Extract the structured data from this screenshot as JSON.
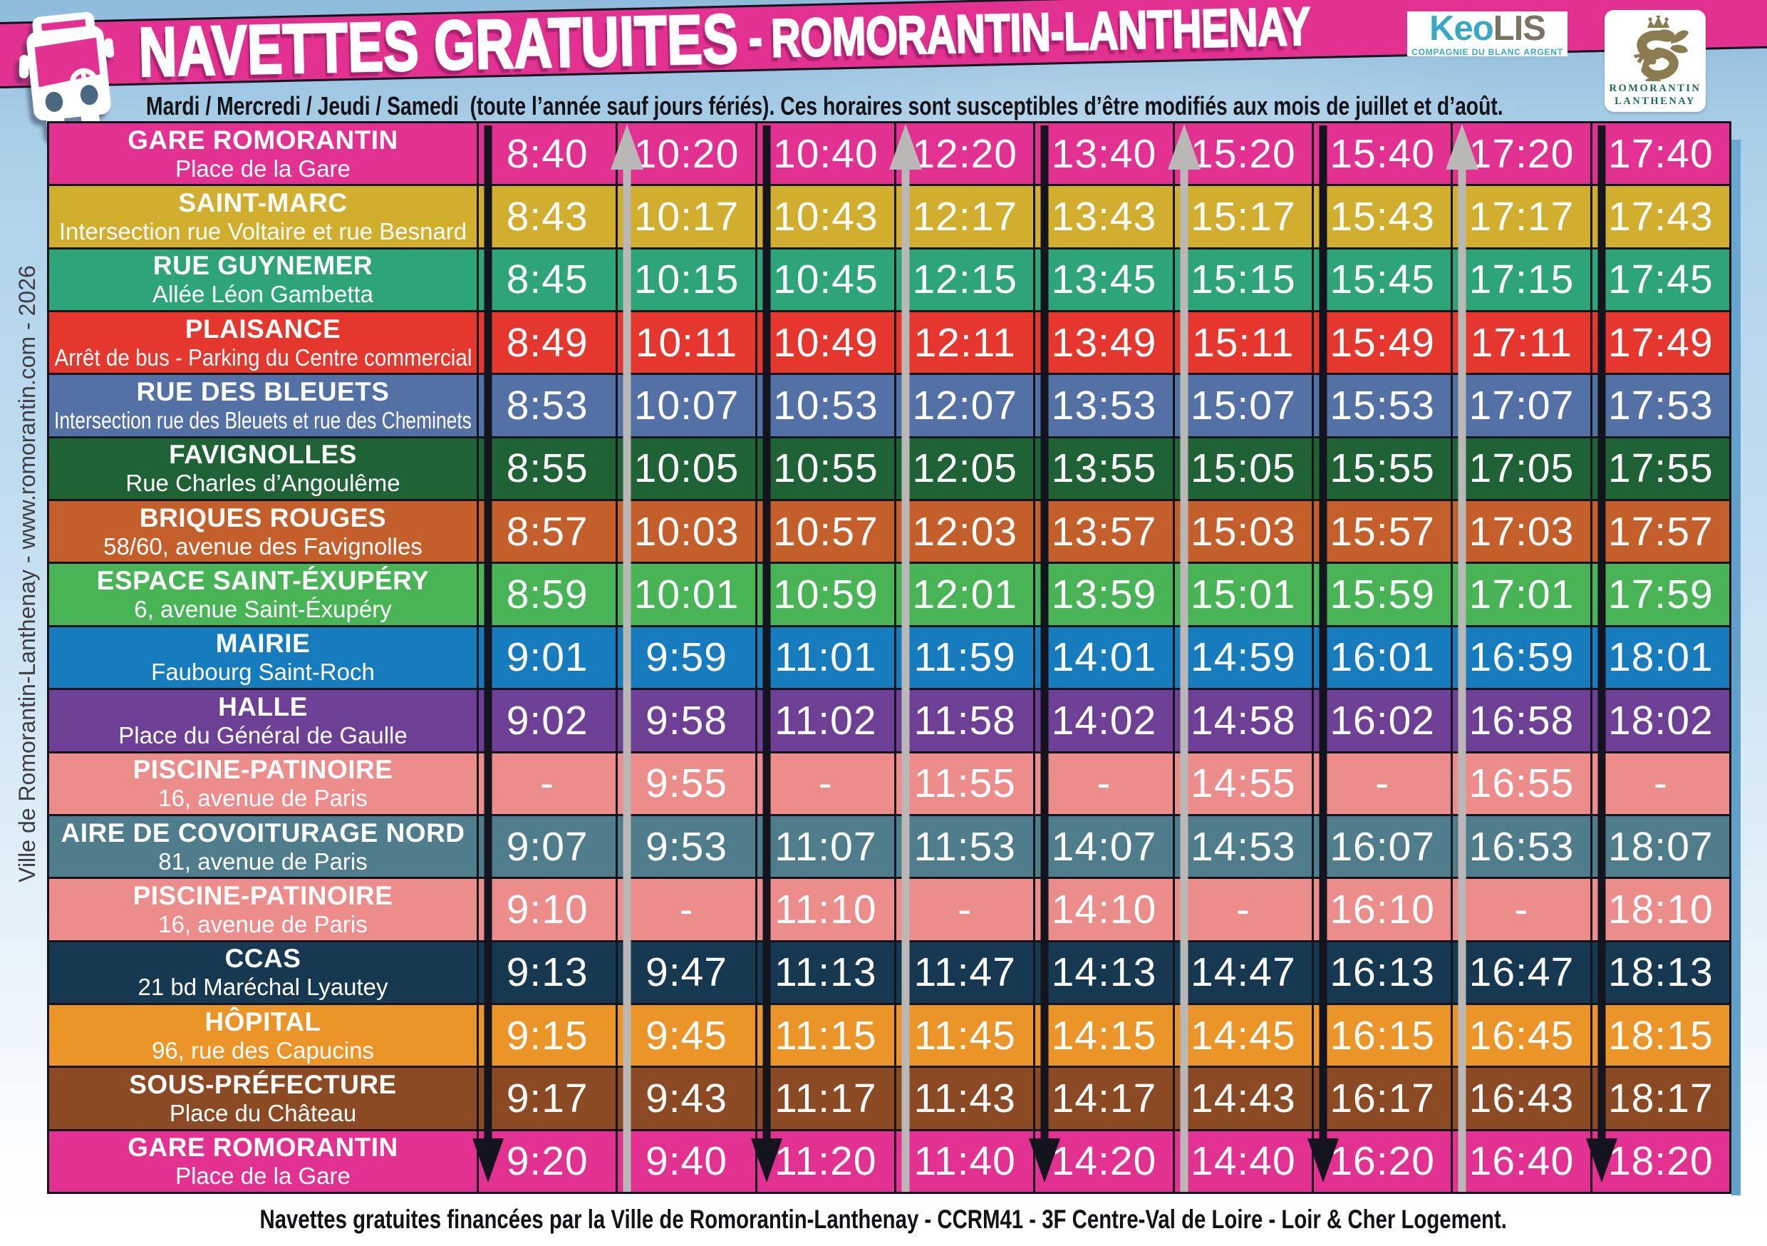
{
  "header": {
    "title_main": "NAVETTES GRATUITES",
    "title_separator": "-",
    "title_city": "ROMORANTIN-LANTHENAY",
    "subtitle": "Mardi / Mercredi / Jeudi / Samedi  (toute l’année sauf jours fériés). Ces horaires sont susceptibles d’être modifiés aux mois de juillet et d’août.",
    "banner_color": "#e23190"
  },
  "logos": {
    "keolis": {
      "word_main": "Keo",
      "word_secondary": "LIS",
      "tagline": "COMPAGNIE DU BLANC ARGENT",
      "color_main": "#38a8c5",
      "color_secondary": "#7b7264"
    },
    "romorantin": {
      "line1": "ROMORANTIN",
      "line2": "LANTHENAY",
      "emblem": "crowned-salamander",
      "color_emblem": "#8a7c50",
      "color_text": "#1d6b5b"
    }
  },
  "sidebar_credit": "Ville de Romorantin-Lanthenay - www.romorantin.com - 2026",
  "footer": "Navettes gratuites financées par la Ville de Romorantin-Lanthenay - CCRM41 - 3F Centre-Val de Loire - Loir & Cher Logement.",
  "timetable": {
    "arrow_colors": {
      "outbound_down": "#14141f",
      "return_up": "#b9b8b6"
    },
    "stops": [
      {
        "name": "GARE ROMORANTIN",
        "address": "Place de la Gare",
        "color": "#e23190",
        "times": [
          "8:40",
          "10:20",
          "10:40",
          "12:20",
          "13:40",
          "15:20",
          "15:40",
          "17:20",
          "17:40"
        ]
      },
      {
        "name": "SAINT-MARC",
        "address": "Intersection rue Voltaire et rue Besnard",
        "color": "#d2ae2e",
        "times": [
          "8:43",
          "10:17",
          "10:43",
          "12:17",
          "13:43",
          "15:17",
          "15:43",
          "17:17",
          "17:43"
        ]
      },
      {
        "name": "RUE GUYNEMER",
        "address": "Allée Léon Gambetta",
        "color": "#2ea578",
        "times": [
          "8:45",
          "10:15",
          "10:45",
          "12:15",
          "13:45",
          "15:15",
          "15:45",
          "17:15",
          "17:45"
        ]
      },
      {
        "name": "PLAISANCE",
        "address": "Arrêt de bus - Parking du Centre commercial",
        "color": "#e6372e",
        "times": [
          "8:49",
          "10:11",
          "10:49",
          "12:11",
          "13:49",
          "15:11",
          "15:49",
          "17:11",
          "17:49"
        ]
      },
      {
        "name": "RUE DES BLEUETS",
        "address": "Intersection rue des Bleuets et rue des Cheminets",
        "color": "#5471a6",
        "times": [
          "8:53",
          "10:07",
          "10:53",
          "12:07",
          "13:53",
          "15:07",
          "15:53",
          "17:07",
          "17:53"
        ]
      },
      {
        "name": "FAVIGNOLLES",
        "address": "Rue Charles d’Angoulême",
        "color": "#1f6236",
        "times": [
          "8:55",
          "10:05",
          "10:55",
          "12:05",
          "13:55",
          "15:05",
          "15:55",
          "17:05",
          "17:55"
        ]
      },
      {
        "name": "BRIQUES ROUGES",
        "address": "58/60, avenue des Favignolles",
        "color": "#c45f2c",
        "times": [
          "8:57",
          "10:03",
          "10:57",
          "12:03",
          "13:57",
          "15:03",
          "15:57",
          "17:03",
          "17:57"
        ]
      },
      {
        "name": "ESPACE SAINT-ÉXUPÉRY",
        "address": "6, avenue Saint-Éxupéry",
        "color": "#48b456",
        "times": [
          "8:59",
          "10:01",
          "10:59",
          "12:01",
          "13:59",
          "15:01",
          "15:59",
          "17:01",
          "17:59"
        ]
      },
      {
        "name": "MAIRIE",
        "address": "Faubourg Saint-Roch",
        "color": "#177cbe",
        "times": [
          "9:01",
          "9:59",
          "11:01",
          "11:59",
          "14:01",
          "14:59",
          "16:01",
          "16:59",
          "18:01"
        ]
      },
      {
        "name": "HALLE",
        "address": "Place du Général de Gaulle",
        "color": "#6d3f95",
        "times": [
          "9:02",
          "9:58",
          "11:02",
          "11:58",
          "14:02",
          "14:58",
          "16:02",
          "16:58",
          "18:02"
        ]
      },
      {
        "name": "PISCINE-PATINOIRE",
        "address": "16, avenue de Paris",
        "color": "#ec8c8b",
        "times": [
          "-",
          "9:55",
          "-",
          "11:55",
          "-",
          "14:55",
          "-",
          "16:55",
          "-"
        ]
      },
      {
        "name": "AIRE DE COVOITURAGE NORD",
        "address": "81, avenue de Paris",
        "color": "#4f7d8b",
        "times": [
          "9:07",
          "9:53",
          "11:07",
          "11:53",
          "14:07",
          "14:53",
          "16:07",
          "16:53",
          "18:07"
        ]
      },
      {
        "name": "PISCINE-PATINOIRE",
        "address": "16, avenue de Paris",
        "color": "#ec8c8b",
        "times": [
          "9:10",
          "-",
          "11:10",
          "-",
          "14:10",
          "-",
          "16:10",
          "-",
          "18:10"
        ]
      },
      {
        "name": "CCAS",
        "address": "21 bd Maréchal Lyautey",
        "color": "#163850",
        "times": [
          "9:13",
          "9:47",
          "11:13",
          "11:47",
          "14:13",
          "14:47",
          "16:13",
          "16:47",
          "18:13"
        ]
      },
      {
        "name": "HÔPITAL",
        "address": "96, rue des Capucins",
        "color": "#eb9428",
        "times": [
          "9:15",
          "9:45",
          "11:15",
          "11:45",
          "14:15",
          "14:45",
          "16:15",
          "16:45",
          "18:15"
        ]
      },
      {
        "name": "SOUS-PRÉFECTURE",
        "address": "Place du Château",
        "color": "#8b4a23",
        "times": [
          "9:17",
          "9:43",
          "11:17",
          "11:43",
          "14:17",
          "14:43",
          "16:17",
          "16:43",
          "18:17"
        ]
      },
      {
        "name": "GARE ROMORANTIN",
        "address": "Place de la Gare",
        "color": "#e23190",
        "times": [
          "9:20",
          "9:40",
          "11:20",
          "11:40",
          "14:20",
          "14:40",
          "16:20",
          "16:40",
          "18:20"
        ]
      }
    ]
  }
}
